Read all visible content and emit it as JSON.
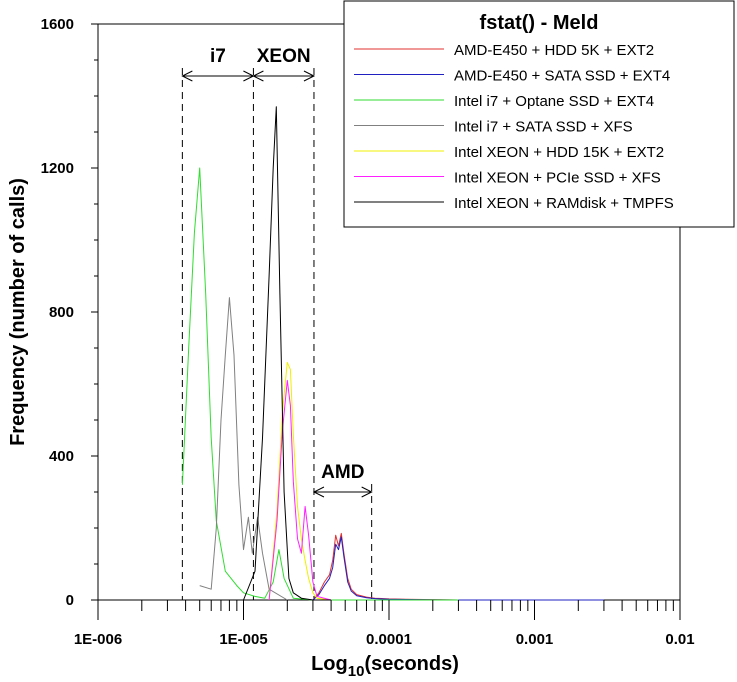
{
  "chart_data": {
    "type": "line",
    "title": "fstat() - Meld",
    "xlabel": "Log10(seconds)",
    "xlabel_main": "Log",
    "xlabel_sub": "10",
    "xlabel_tail": "(seconds)",
    "ylabel": "Frequency (number of calls)",
    "xscale": "log",
    "xlim": [
      1e-06,
      0.01
    ],
    "ylim": [
      0,
      1600
    ],
    "x_ticks": [
      1e-06,
      1e-05,
      0.0001,
      0.001,
      0.01
    ],
    "x_tick_labels": [
      "1E-006",
      "1E-005",
      "0.0001",
      "0.001",
      "0.01"
    ],
    "y_ticks": [
      0,
      400,
      800,
      1200,
      1600
    ],
    "y_tick_labels": [
      "0",
      "400",
      "800",
      "1200",
      "1600"
    ],
    "legend_position": "top-right",
    "annotations": [
      {
        "label": "i7",
        "x_range": [
          3.8e-06,
          1.17e-05
        ]
      },
      {
        "label": "XEON",
        "x_range": [
          1.17e-05,
          3.05e-05
        ]
      },
      {
        "label": "AMD",
        "x_range": [
          3.05e-05,
          7.6e-05
        ]
      }
    ],
    "series": [
      {
        "name": "AMD-E450 + HDD 5K + EXT2",
        "color": "#e03030",
        "x": [
          3e-05,
          3.3e-05,
          3.6e-05,
          3.9e-05,
          4.1e-05,
          4.3e-05,
          4.5e-05,
          4.7e-05,
          4.9e-05,
          5.2e-05,
          5.5e-05,
          6e-05,
          7e-05,
          8e-05,
          0.0001,
          0.00013,
          0.0002,
          0.0003
        ],
        "y": [
          0,
          20,
          50,
          70,
          110,
          180,
          150,
          185,
          130,
          60,
          30,
          15,
          8,
          5,
          3,
          2,
          1,
          0
        ]
      },
      {
        "name": "AMD-E450 + SATA SSD + EXT4",
        "color": "#2020c0",
        "x": [
          3e-05,
          3.3e-05,
          3.6e-05,
          3.9e-05,
          4.1e-05,
          4.3e-05,
          4.5e-05,
          4.7e-05,
          4.9e-05,
          5.2e-05,
          5.5e-05,
          6e-05,
          7e-05,
          8e-05,
          0.0001,
          0.00015,
          0.0003,
          0.003
        ],
        "y": [
          0,
          15,
          40,
          60,
          90,
          155,
          140,
          175,
          120,
          50,
          25,
          12,
          6,
          4,
          2,
          1,
          0,
          0
        ]
      },
      {
        "name": "Intel i7 + Optane SSD + EXT4",
        "color": "#30dd30",
        "x": [
          3.8e-06,
          4.2e-06,
          4.6e-06,
          5e-06,
          5.5e-06,
          6e-06,
          6.5e-06,
          7.5e-06,
          9e-06,
          1e-05,
          1.2e-05,
          1.4e-05,
          1.6e-05,
          1.75e-05,
          1.9e-05,
          2.2e-05,
          3e-05,
          0.0001,
          0.0003
        ],
        "y": [
          320,
          700,
          1020,
          1200,
          850,
          450,
          220,
          80,
          40,
          20,
          10,
          5,
          50,
          140,
          60,
          5,
          0,
          0,
          0
        ]
      },
      {
        "name": "Intel i7 + SATA SSD + XFS",
        "color": "#808080",
        "x": [
          5e-06,
          6e-06,
          6.5e-06,
          7e-06,
          7.5e-06,
          8e-06,
          8.6e-06,
          9.3e-06,
          1e-05,
          1.08e-05,
          1.15e-05,
          1.25e-05,
          1.35e-05,
          1.5e-05,
          2e-05
        ],
        "y": [
          40,
          30,
          200,
          500,
          680,
          840,
          680,
          320,
          140,
          230,
          130,
          230,
          130,
          30,
          0
        ]
      },
      {
        "name": "Intel XEON + HDD 15K + EXT2",
        "color": "#f0f000",
        "x": [
          1.5e-05,
          1.7e-05,
          1.85e-05,
          2e-05,
          2.1e-05,
          2.2e-05,
          2.35e-05,
          2.5e-05,
          2.65e-05,
          2.8e-05,
          3e-05,
          3.2e-05,
          4e-05
        ],
        "y": [
          0,
          250,
          520,
          660,
          640,
          460,
          260,
          170,
          110,
          60,
          20,
          5,
          0
        ]
      },
      {
        "name": "Intel XEON + PCIe SSD + XFS",
        "color": "#ff20ff",
        "x": [
          1.5e-05,
          1.7e-05,
          1.85e-05,
          2e-05,
          2.1e-05,
          2.2e-05,
          2.35e-05,
          2.5e-05,
          2.65e-05,
          2.8e-05,
          3e-05,
          3.2e-05,
          4e-05
        ],
        "y": [
          0,
          220,
          470,
          610,
          540,
          330,
          170,
          130,
          260,
          180,
          50,
          10,
          0
        ]
      },
      {
        "name": "Intel XEON + RAMdisk + TMPFS",
        "color": "#000000",
        "x": [
          1e-05,
          1.2e-05,
          1.35e-05,
          1.5e-05,
          1.6e-05,
          1.68e-05,
          1.78e-05,
          1.9e-05,
          2.05e-05,
          2.2e-05,
          2.5e-05,
          3e-05,
          4e-05
        ],
        "y": [
          0,
          80,
          450,
          900,
          1200,
          1370,
          850,
          300,
          60,
          20,
          5,
          0,
          0
        ]
      }
    ]
  }
}
